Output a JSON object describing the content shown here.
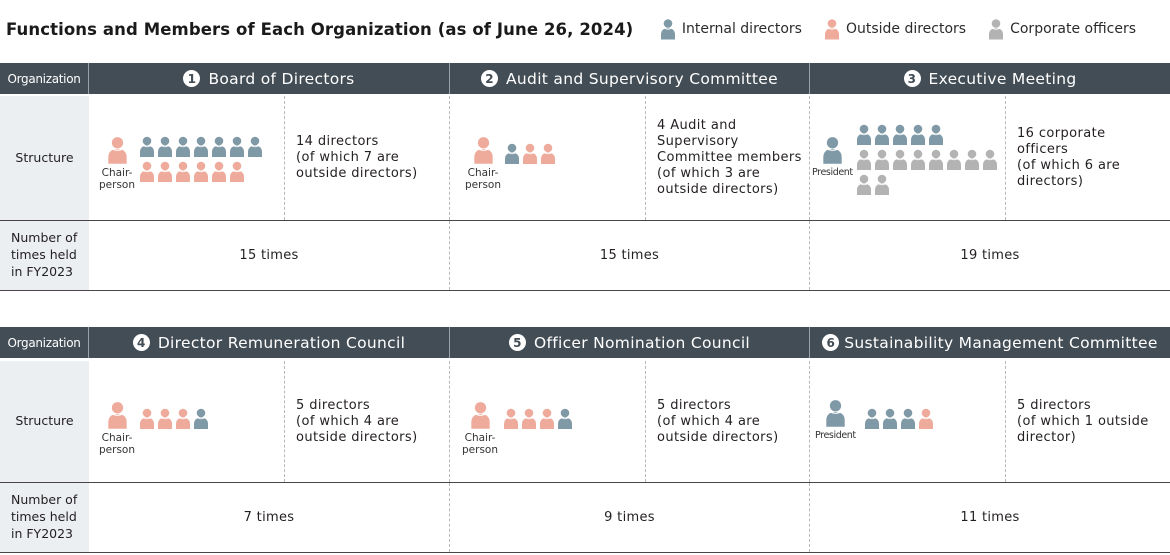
{
  "title": "Functions and Members of Each Organization (as of June 26, 2024)",
  "legend": [
    {
      "label": "Internal directors",
      "icon": "person-icon",
      "color": "#7f99a6"
    },
    {
      "label": "Outside directors",
      "icon": "person-icon",
      "color": "#eeab9c"
    },
    {
      "label": "Corporate officers",
      "icon": "person-icon",
      "color": "#b3b3b3"
    }
  ],
  "colors": {
    "header_bg": "#434d55",
    "label_bg": "#eceff2",
    "internal": "#7f99a6",
    "outside": "#eeab9c",
    "officer": "#b3b3b3"
  },
  "labels": {
    "organization": "Organization",
    "structure": "Structure",
    "count": "Number of\ntimes held\nin FY2023"
  },
  "organizations": [
    {
      "number": "1",
      "name": "Board of Directors",
      "leader_caption": "Chair-\nperson",
      "leader_type": "outside",
      "members": [
        "internal",
        "internal",
        "internal",
        "internal",
        "internal",
        "internal",
        "internal",
        "outside",
        "outside",
        "outside",
        "outside",
        "outside",
        "outside"
      ],
      "description": "14 directors\n(of which 7 are\noutside directors)",
      "times": "15 times"
    },
    {
      "number": "2",
      "name": "Audit and Supervisory Committee",
      "leader_caption": "Chair-\nperson",
      "leader_type": "outside",
      "members": [
        "internal",
        "outside",
        "outside"
      ],
      "description": "4 Audit and\nSupervisory\nCommittee members\n(of which 3 are\noutside directors)",
      "times": "15 times"
    },
    {
      "number": "3",
      "name": "Executive Meeting",
      "leader_caption": "President",
      "leader_type": "internal",
      "members": [
        "internal",
        "internal",
        "internal",
        "internal",
        "internal",
        "officer",
        "officer",
        "officer",
        "officer",
        "officer",
        "officer",
        "officer",
        "officer",
        "officer",
        "officer"
      ],
      "description": "16 corporate\nofficers\n(of which 6 are\ndirectors)",
      "times": "19 times"
    },
    {
      "number": "4",
      "name": "Director Remuneration Council",
      "leader_caption": "Chair-\nperson",
      "leader_type": "outside",
      "members": [
        "outside",
        "outside",
        "outside",
        "internal"
      ],
      "description": "5 directors\n(of which 4 are\noutside directors)",
      "times": "7 times"
    },
    {
      "number": "5",
      "name": "Officer Nomination Council",
      "leader_caption": "Chair-\nperson",
      "leader_type": "outside",
      "members": [
        "outside",
        "outside",
        "outside",
        "internal"
      ],
      "description": "5 directors\n(of which 4 are\noutside directors)",
      "times": "9 times"
    },
    {
      "number": "6",
      "name": "Sustainability Management Committee",
      "leader_caption": "President",
      "leader_type": "internal",
      "members": [
        "internal",
        "internal",
        "internal",
        "outside"
      ],
      "description": "5 directors\n(of which 1 outside\ndirector)",
      "times": "11 times"
    }
  ]
}
